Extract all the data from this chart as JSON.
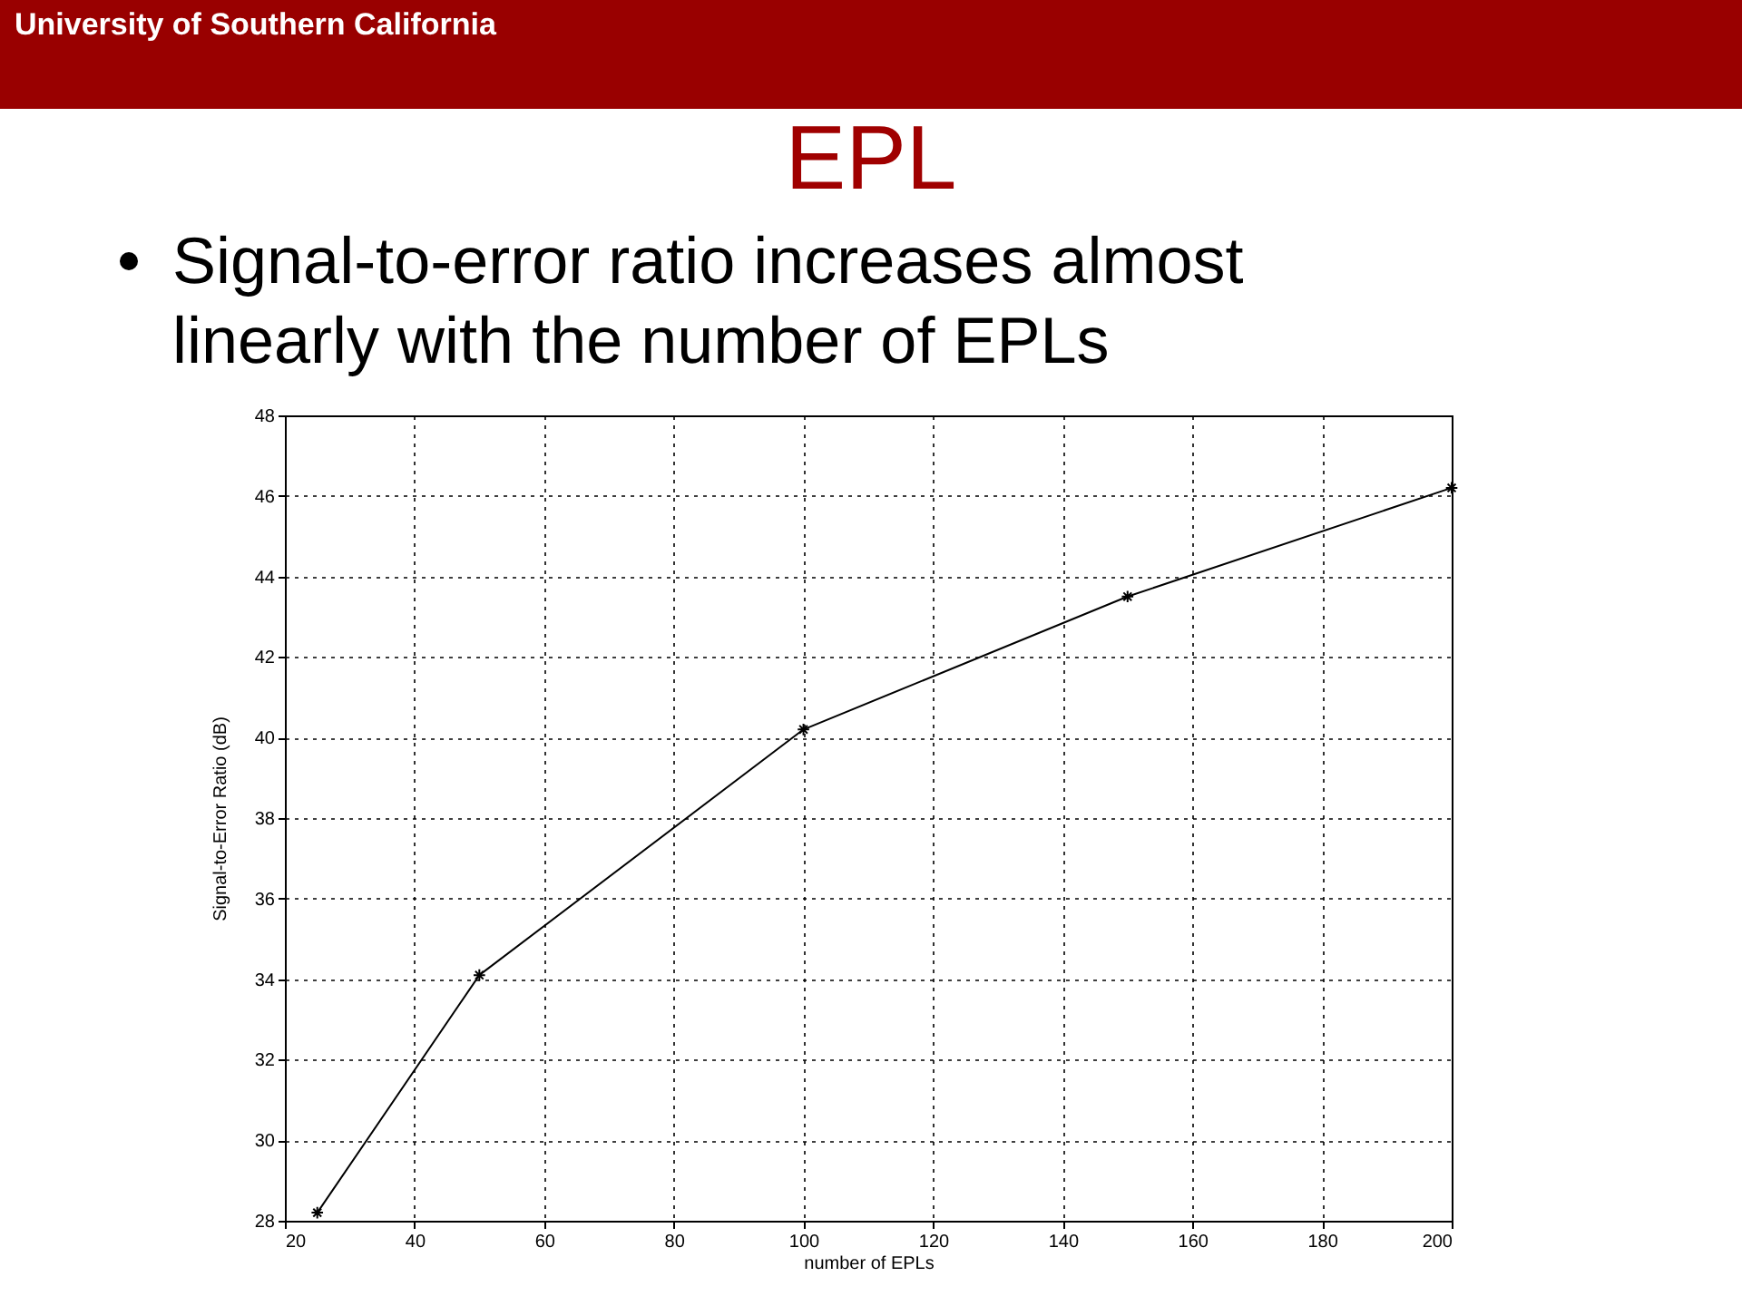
{
  "chart_data": {
    "type": "line",
    "title": "EPL",
    "subtitle": "Signal-to-error ratio increases almost linearly with the number of EPLs",
    "annotations": [
      "University of Southern California"
    ],
    "xlabel": "number of EPLs",
    "ylabel": "Signal-to-Error Ratio (dB)",
    "x": [
      25,
      50,
      100,
      150,
      200
    ],
    "series": [
      {
        "color": "#000000",
        "values": [
          28.2,
          34.1,
          40.2,
          43.5,
          46.2
        ]
      }
    ],
    "xlim": [
      20,
      200
    ],
    "xticks": [
      20,
      40,
      60,
      80,
      100,
      120,
      140,
      160,
      180,
      200
    ],
    "ylim": [
      28,
      48
    ],
    "yticks": [
      28,
      30,
      32,
      34,
      36,
      38,
      40,
      42,
      44,
      46,
      48
    ],
    "grid": true,
    "marker": "cross",
    "line_style": "solid"
  }
}
